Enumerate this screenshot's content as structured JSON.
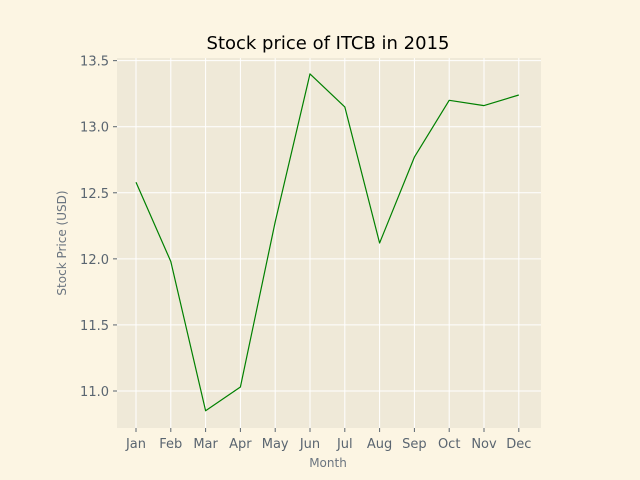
{
  "chart_data": {
    "type": "line",
    "title": "Stock price of ITCB in 2015",
    "xlabel": "Month",
    "ylabel": "Stock Price (USD)",
    "categories": [
      "Jan",
      "Feb",
      "Mar",
      "Apr",
      "May",
      "Jun",
      "Jul",
      "Aug",
      "Sep",
      "Oct",
      "Nov",
      "Dec"
    ],
    "series": [
      {
        "name": "ITCB",
        "color": "#008000",
        "values": [
          12.58,
          11.98,
          10.85,
          11.03,
          12.28,
          13.4,
          13.15,
          12.12,
          12.77,
          13.2,
          13.16,
          13.24
        ]
      }
    ],
    "yticks": [
      11.0,
      11.5,
      12.0,
      12.5,
      13.0,
      13.5
    ],
    "ytick_labels": [
      "11.0",
      "11.5",
      "12.0",
      "12.5",
      "13.0",
      "13.5"
    ],
    "ylim": [
      10.72,
      13.52
    ],
    "grid": true,
    "colors": {
      "figure_bg": "#fcf5e3",
      "axes_bg": "#efe9d8",
      "grid": "#ffffff",
      "tick_text": "#5a6570"
    }
  }
}
